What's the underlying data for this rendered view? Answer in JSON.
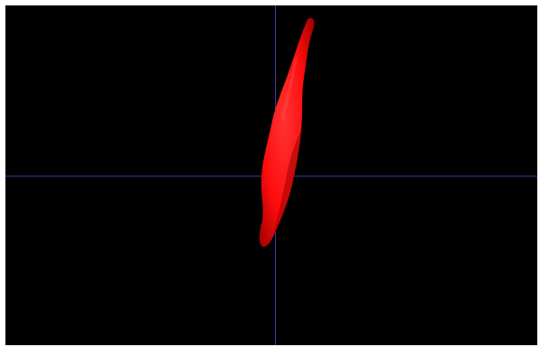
{
  "viewport": {
    "background_color": "#000000",
    "crosshair_color": "#3a3aa8",
    "object_color": "#ff0d0d",
    "object_shadow_color": "#9e0000",
    "object_highlight_color": "#ff4a4a"
  }
}
